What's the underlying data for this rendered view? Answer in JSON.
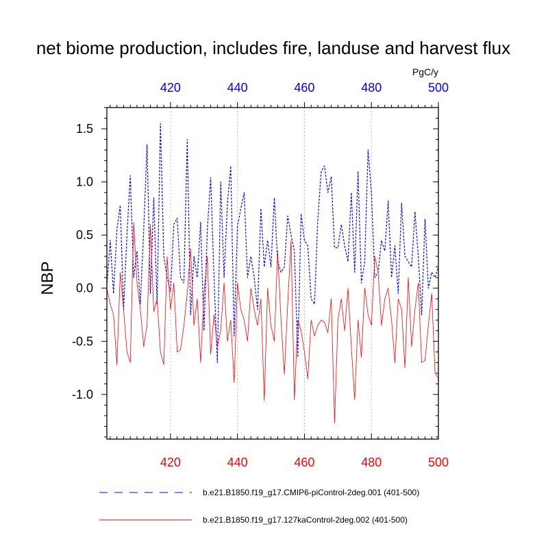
{
  "chart_data": {
    "type": "line",
    "title": "net biome production, includes fire, landuse and harvest flux",
    "units": "PgC/y",
    "ylabel": "NBP",
    "xlim": [
      401,
      500
    ],
    "ylim": [
      -1.42,
      1.7
    ],
    "x_ticks": [
      420,
      440,
      460,
      480,
      500
    ],
    "x_tick_labels_top": [
      "420",
      "440",
      "460",
      "480",
      "500"
    ],
    "x_tick_labels_bottom": [
      "420",
      "440",
      "460",
      "480",
      "500"
    ],
    "y_ticks": [
      -1.0,
      -0.5,
      0.0,
      0.5,
      1.0,
      1.5
    ],
    "y_tick_labels": [
      "-1.0",
      "-0.5",
      "0.0",
      "0.5",
      "1.0",
      "1.5"
    ],
    "vertical_gridlines": [
      420,
      440,
      460,
      480
    ],
    "colors": {
      "series1": "#0000ff",
      "series2": "#ff0000",
      "top_ticks": "#0000ff",
      "bottom_ticks": "#ff0000",
      "grid": "#bbbbbb"
    },
    "series": [
      {
        "name": "b.e21.B1850.f19_g17.CMIP6-piControl-2deg.001 (401-500)",
        "style": "dashed",
        "color": "#0000ff",
        "x_start": 401,
        "values": [
          0.02,
          0.45,
          -0.05,
          0.55,
          0.78,
          -0.2,
          0.5,
          1.06,
          0.1,
          0.35,
          -0.15,
          0.55,
          1.35,
          -0.05,
          0.85,
          -0.15,
          1.55,
          0.3,
          0.1,
          -0.03,
          0.6,
          0.66,
          0.1,
          0.05,
          1.4,
          -0.25,
          0.3,
          0.1,
          0.62,
          -0.4,
          0.55,
          1.04,
          0.1,
          -0.7,
          1.0,
          0.1,
          0.8,
          1.15,
          -0.45,
          0.58,
          0.75,
          0.9,
          0.1,
          0.3,
          0.1,
          -0.2,
          0.75,
          0.2,
          0.45,
          0.2,
          0.85,
          0.25,
          0.15,
          0.2,
          0.68,
          0.5,
          0.35,
          -0.65,
          0.7,
          0.45,
          0.4,
          -0.1,
          -0.15,
          0.65,
          1.1,
          1.15,
          0.9,
          1.05,
          0.38,
          0.38,
          0.6,
          0.4,
          0.25,
          0.9,
          0.15,
          1.1,
          0.05,
          0.25,
          1.3,
          0.9,
          0.1,
          0.15,
          0.45,
          0.35,
          0.82,
          0.1,
          0.4,
          -0.05,
          0.8,
          0.3,
          0.25,
          0.2,
          0.72,
          0.3,
          -0.25,
          0.65,
          0.0,
          0.15,
          0.1,
          0.2
        ]
      },
      {
        "name": "b.e21.B1850.f19_g17.127kaControl-2deg.002 (401-500)",
        "style": "solid",
        "color": "#ff0000",
        "x_start": 401,
        "values": [
          0.0,
          -0.15,
          -0.25,
          -0.72,
          0.15,
          -0.2,
          -0.6,
          -0.7,
          0.62,
          0.05,
          -0.2,
          -0.55,
          -0.35,
          0.6,
          -0.22,
          -0.1,
          -0.6,
          -0.72,
          0.3,
          -0.2,
          0.05,
          -0.6,
          -0.58,
          -0.35,
          -0.05,
          0.37,
          -0.35,
          -0.1,
          -0.7,
          -0.05,
          0.3,
          -0.62,
          -0.25,
          -0.55,
          -0.4,
          0.05,
          -0.5,
          -0.3,
          -0.89,
          0.05,
          -0.2,
          -0.3,
          -0.5,
          0.0,
          -0.2,
          -0.35,
          -0.1,
          -1.06,
          0.0,
          -0.35,
          -0.5,
          0.35,
          -0.3,
          -0.81,
          -0.15,
          0.45,
          -1.05,
          -0.3,
          -0.4,
          -0.6,
          -0.85,
          -0.3,
          -0.45,
          -0.35,
          -0.3,
          -0.32,
          -0.42,
          -0.1,
          -1.27,
          -0.3,
          -0.1,
          -0.4,
          0.0,
          -0.55,
          -1.05,
          -0.3,
          -0.65,
          0.0,
          -0.25,
          -0.35,
          0.3,
          0.15,
          -0.35,
          -0.1,
          0.0,
          -0.3,
          -0.7,
          -0.1,
          -0.2,
          -0.75,
          0.1,
          -0.55,
          -0.2,
          0.05,
          -0.7,
          -0.68,
          -0.35,
          -0.05,
          -0.8,
          -0.85
        ]
      }
    ]
  }
}
